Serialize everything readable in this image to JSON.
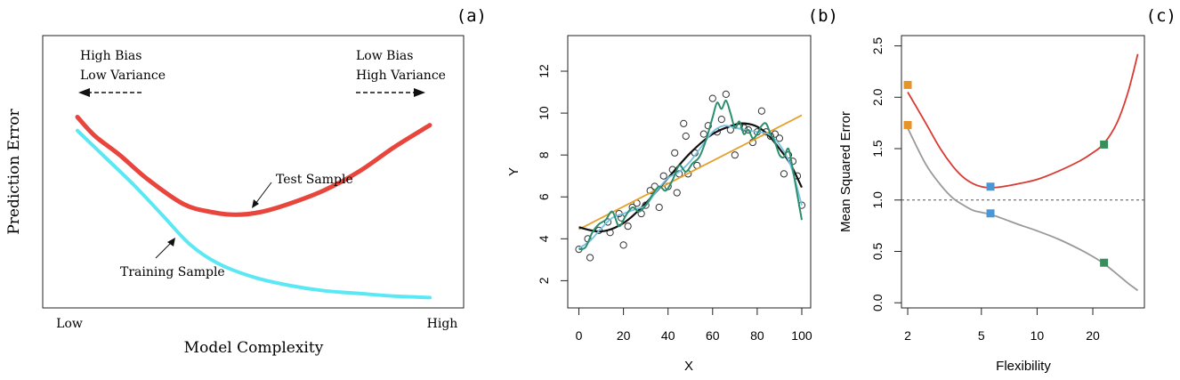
{
  "chart_data": [
    {
      "panel_label": "(a)",
      "type": "line",
      "xlabel": "Model Complexity",
      "ylabel": "Prediction Error",
      "x_tick_labels": [
        "Low",
        "High"
      ],
      "xlim": [
        0,
        1
      ],
      "ylim": [
        0,
        1
      ],
      "annotations": {
        "left_top": "High Bias",
        "left_bottom": "Low Variance",
        "right_top": "Low Bias",
        "right_bottom": "High Variance",
        "test_label": "Test Sample",
        "train_label": "Training Sample"
      },
      "series": [
        {
          "name": "Test Sample",
          "color": "#e8453c",
          "x": [
            0.0,
            0.05,
            0.12,
            0.2,
            0.3,
            0.38,
            0.45,
            0.52,
            0.6,
            0.7,
            0.8,
            0.9,
            1.0
          ],
          "y": [
            0.7,
            0.63,
            0.56,
            0.47,
            0.38,
            0.35,
            0.34,
            0.35,
            0.38,
            0.43,
            0.5,
            0.59,
            0.67
          ]
        },
        {
          "name": "Training Sample",
          "color": "#5ae8f5",
          "x": [
            0.0,
            0.08,
            0.16,
            0.24,
            0.32,
            0.4,
            0.5,
            0.6,
            0.7,
            0.8,
            0.9,
            1.0
          ],
          "y": [
            0.65,
            0.55,
            0.45,
            0.34,
            0.23,
            0.16,
            0.11,
            0.08,
            0.06,
            0.05,
            0.04,
            0.035
          ]
        }
      ]
    },
    {
      "panel_label": "(b)",
      "type": "scatter",
      "xlabel": "X",
      "ylabel": "Y",
      "xlim": [
        -5,
        104
      ],
      "ylim": [
        0.7,
        13.7
      ],
      "x_ticks": [
        0,
        20,
        40,
        60,
        80,
        100
      ],
      "y_ticks": [
        2,
        4,
        6,
        8,
        10,
        12
      ],
      "points": {
        "x": [
          0,
          4,
          5,
          9,
          13,
          14,
          18,
          19,
          20,
          22,
          24,
          26,
          28,
          30,
          32,
          34,
          36,
          38,
          40,
          42,
          43,
          44,
          45,
          47,
          48,
          49,
          52,
          53,
          56,
          58,
          60,
          62,
          64,
          66,
          68,
          70,
          72,
          74,
          76,
          78,
          80,
          82,
          84,
          86,
          88,
          90,
          92,
          94,
          96,
          98,
          100
        ],
        "y": [
          3.5,
          4.0,
          3.1,
          4.4,
          4.8,
          4.3,
          5.2,
          5.0,
          3.7,
          4.6,
          5.5,
          5.7,
          5.2,
          5.6,
          6.3,
          6.5,
          5.5,
          7.0,
          6.5,
          7.3,
          8.1,
          6.2,
          7.1,
          9.5,
          8.9,
          7.1,
          8.1,
          7.5,
          9.0,
          9.4,
          10.7,
          9.1,
          9.7,
          10.9,
          9.2,
          8.0,
          9.4,
          9.3,
          9.2,
          8.6,
          9.1,
          10.1,
          9.1,
          8.9,
          9.0,
          8.8,
          7.1,
          8.0,
          7.7,
          7.0,
          5.6
        ]
      },
      "series": [
        {
          "color": "#e6a02a",
          "x": [
            0,
            100
          ],
          "y": [
            4.45,
            9.9
          ]
        },
        {
          "color": "#111111",
          "x": [
            0,
            10,
            20,
            30,
            40,
            50,
            60,
            70,
            75,
            80,
            85,
            90,
            95,
            100
          ],
          "y": [
            4.55,
            4.35,
            4.75,
            5.7,
            6.9,
            8.1,
            9.0,
            9.45,
            9.5,
            9.35,
            8.95,
            8.3,
            7.55,
            6.45
          ]
        },
        {
          "color": "#74c2e3",
          "x": [
            0,
            5,
            10,
            15,
            20,
            25,
            30,
            35,
            40,
            45,
            50,
            55,
            60,
            65,
            70,
            75,
            80,
            85,
            90,
            95,
            100
          ],
          "y": [
            3.55,
            3.9,
            4.5,
            5.0,
            5.2,
            5.4,
            5.6,
            6.3,
            6.9,
            7.2,
            7.7,
            8.4,
            9.1,
            9.4,
            9.3,
            9.2,
            9.1,
            9.0,
            8.5,
            7.5,
            5.6
          ]
        },
        {
          "color": "#2b8f6c",
          "x": [
            0,
            3,
            6,
            9,
            12,
            15,
            18,
            21,
            24,
            27,
            30,
            33,
            36,
            39,
            42,
            45,
            48,
            51,
            54,
            57,
            60,
            62,
            64,
            66,
            68,
            70,
            72,
            74,
            76,
            78,
            80,
            82,
            84,
            86,
            88,
            90,
            92,
            94,
            96,
            98,
            100
          ],
          "y": [
            3.5,
            3.6,
            4.3,
            4.7,
            4.9,
            5.3,
            4.6,
            5.1,
            5.5,
            5.3,
            5.6,
            6.1,
            6.5,
            6.3,
            6.8,
            7.5,
            7.2,
            7.6,
            7.9,
            8.7,
            9.8,
            10.5,
            10.2,
            10.6,
            10.0,
            9.3,
            9.6,
            9.0,
            9.2,
            8.8,
            9.0,
            9.4,
            9.5,
            9.0,
            8.6,
            8.0,
            7.9,
            8.3,
            7.3,
            6.1,
            4.9
          ]
        }
      ]
    },
    {
      "panel_label": "(c)",
      "type": "line",
      "xlabel": "Flexibility",
      "ylabel": "Mean Squared Error",
      "x_scale": "log",
      "xlim": [
        1.85,
        38
      ],
      "ylim": [
        -0.05,
        2.6
      ],
      "x_ticks": [
        2,
        5,
        10,
        20
      ],
      "y_ticks": [
        0.0,
        0.5,
        1.0,
        1.5,
        2.0,
        2.5
      ],
      "reference_line": {
        "y": 1.0,
        "style": "dashed",
        "color": "#555555"
      },
      "series": [
        {
          "color": "#d93a32",
          "x": [
            2,
            2.5,
            3,
            3.5,
            4,
            4.5,
            5,
            5.6,
            6.5,
            8,
            10,
            13,
            17,
            20,
            23,
            27,
            31,
            35
          ],
          "y": [
            2.05,
            1.75,
            1.5,
            1.33,
            1.22,
            1.16,
            1.13,
            1.12,
            1.13,
            1.16,
            1.2,
            1.28,
            1.38,
            1.46,
            1.55,
            1.75,
            2.05,
            2.42
          ]
        },
        {
          "color": "#999999",
          "x": [
            2,
            2.5,
            3,
            3.5,
            4,
            4.5,
            5,
            5.6,
            6.5,
            8,
            10,
            13,
            17,
            20,
            23,
            27,
            31,
            35
          ],
          "y": [
            1.7,
            1.35,
            1.15,
            1.02,
            0.95,
            0.9,
            0.88,
            0.86,
            0.82,
            0.76,
            0.7,
            0.62,
            0.52,
            0.45,
            0.38,
            0.28,
            0.19,
            0.12
          ]
        }
      ],
      "markers": [
        {
          "x": 2,
          "y": 2.12,
          "color": "#e6942a"
        },
        {
          "x": 2,
          "y": 1.73,
          "color": "#e6942a"
        },
        {
          "x": 5.6,
          "y": 1.13,
          "color": "#4a97d8"
        },
        {
          "x": 5.6,
          "y": 0.87,
          "color": "#4a97d8"
        },
        {
          "x": 23,
          "y": 1.54,
          "color": "#3a8e5e"
        },
        {
          "x": 23,
          "y": 0.39,
          "color": "#3a8e5e"
        }
      ]
    }
  ]
}
